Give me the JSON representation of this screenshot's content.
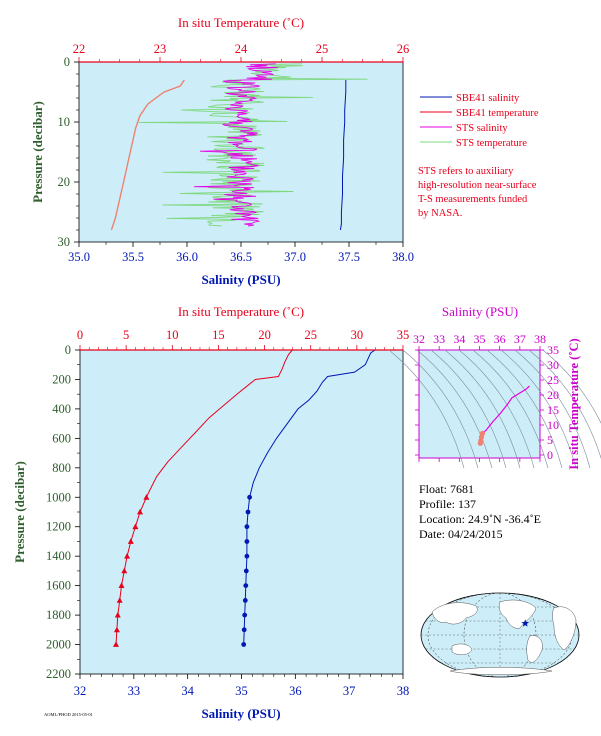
{
  "colors": {
    "panel_bg": "#cdeef9",
    "salinity": "#0018b4",
    "temperature": "#e8001c",
    "sts_salinity": "#e600e6",
    "sts_temperature": "#7ed87e",
    "ts_axis": "#cc00cc",
    "pressure_axis": "#2e5e2e",
    "salmon": "#f08070"
  },
  "chart_data": [
    {
      "id": "near-surface",
      "type": "line",
      "title": "",
      "top_axis_label": "In situ Temperature (˚C)",
      "top_ticks": [
        "22",
        "23",
        "24",
        "25",
        "26"
      ],
      "xlabel": "Salinity (PSU)",
      "x_ticks": [
        "35.0",
        "35.5",
        "36.0",
        "36.5",
        "37.0",
        "37.5",
        "38.0"
      ],
      "ylabel": "Pressure (decibar)",
      "y_ticks": [
        "0",
        "10",
        "20",
        "30"
      ],
      "xlim": [
        35.0,
        38.0
      ],
      "ylim": [
        30,
        0
      ],
      "templim": [
        22,
        26
      ],
      "legend": [
        {
          "key": "sbe_sal",
          "name": "SBE41 salinity"
        },
        {
          "key": "sbe_temp",
          "name": "SBE41 temperature"
        },
        {
          "key": "sts_sal",
          "name": "STS salinity"
        },
        {
          "key": "sts_temp",
          "name": "STS temperature"
        }
      ],
      "note": [
        "STS refers to auxiliary",
        "high-resolution near-surface",
        "T-S measurements funded",
        "by NASA."
      ],
      "sbe_salinity": {
        "salinity": [
          37.47,
          37.47,
          37.46,
          37.46,
          37.45,
          37.45,
          37.44,
          37.44,
          37.43,
          37.43,
          37.42
        ],
        "pressure": [
          3,
          5,
          8,
          10,
          13,
          16,
          19,
          22,
          25,
          27,
          28
        ]
      },
      "sbe_temperature": {
        "temperature": [
          23.3,
          23.25,
          23.05,
          22.85,
          22.75,
          22.7,
          22.65,
          22.6,
          22.55,
          22.5,
          22.45,
          22.4
        ],
        "pressure": [
          3,
          4,
          5,
          7,
          9,
          11,
          14,
          17,
          20,
          23,
          26,
          28
        ]
      }
    },
    {
      "id": "full-profile",
      "type": "line",
      "title": "",
      "top_axis_label": "In situ Temperature (˚C)",
      "top_ticks": [
        "0",
        "5",
        "10",
        "15",
        "20",
        "25",
        "30",
        "35"
      ],
      "xlabel": "Salinity (PSU)",
      "x_ticks": [
        "32",
        "33",
        "34",
        "35",
        "36",
        "37",
        "38"
      ],
      "ylabel": "Pressure (decibar)",
      "y_ticks": [
        "0",
        "200",
        "400",
        "600",
        "800",
        "1000",
        "1200",
        "1400",
        "1600",
        "1800",
        "2000",
        "2200"
      ],
      "xlim": [
        32,
        38
      ],
      "ylim": [
        2200,
        0
      ],
      "templim": [
        0,
        35
      ],
      "series": [
        {
          "name": "Salinity",
          "pressure": [
            0,
            20,
            60,
            100,
            150,
            180,
            220,
            280,
            340,
            400,
            500,
            600,
            700,
            800,
            900,
            1000,
            1100,
            1200,
            1300,
            1400,
            1500,
            1600,
            1700,
            1800,
            1900,
            2000
          ],
          "values": [
            37.48,
            37.4,
            37.35,
            37.3,
            37.1,
            36.6,
            36.5,
            36.4,
            36.25,
            36.05,
            35.85,
            35.65,
            35.48,
            35.33,
            35.22,
            35.15,
            35.12,
            35.1,
            35.1,
            35.1,
            35.09,
            35.08,
            35.07,
            35.06,
            35.05,
            35.04
          ]
        },
        {
          "name": "Temperature",
          "pressure": [
            0,
            30,
            80,
            130,
            180,
            200,
            240,
            300,
            380,
            460,
            560,
            660,
            760,
            860,
            960,
            1000,
            1100,
            1200,
            1300,
            1400,
            1500,
            1600,
            1700,
            1800,
            1900,
            2000
          ],
          "values": [
            23.0,
            22.6,
            22.2,
            21.9,
            21.5,
            19.0,
            18.2,
            17.0,
            15.5,
            14.0,
            12.5,
            11.0,
            9.5,
            8.3,
            7.5,
            7.2,
            6.5,
            6.0,
            5.5,
            5.1,
            4.8,
            4.5,
            4.3,
            4.1,
            4.0,
            3.9
          ]
        }
      ]
    },
    {
      "id": "ts-diagram",
      "type": "line",
      "title": "",
      "top_axis_label": "Salinity (PSU)",
      "x_ticks": [
        "32",
        "33",
        "34",
        "35",
        "36",
        "37",
        "38"
      ],
      "y_axis_label": "In situ Temperature (˚C)",
      "y_ticks": [
        "0",
        "5",
        "10",
        "15",
        "20",
        "25",
        "30",
        "35"
      ],
      "xlim": [
        32,
        38
      ],
      "ylim": [
        -1,
        35
      ],
      "profile": {
        "salinity": [
          37.48,
          37.3,
          36.6,
          36.4,
          36.05,
          35.65,
          35.33,
          35.15,
          35.1,
          35.07,
          35.04
        ],
        "temperature": [
          23.0,
          21.9,
          19.0,
          17.0,
          14.0,
          11.0,
          8.3,
          7.2,
          6.0,
          4.8,
          3.9
        ]
      }
    }
  ],
  "float_info": {
    "float": "Float:  7681",
    "profile": "Profile:  137",
    "location": "Location:  24.9˚N  -36.4˚E",
    "date": "Date:  04/24/2015"
  },
  "map": {
    "marker_lon": -36.4,
    "marker_lat": 24.9
  },
  "footer": "AOML/PHOD 2015-05-01"
}
